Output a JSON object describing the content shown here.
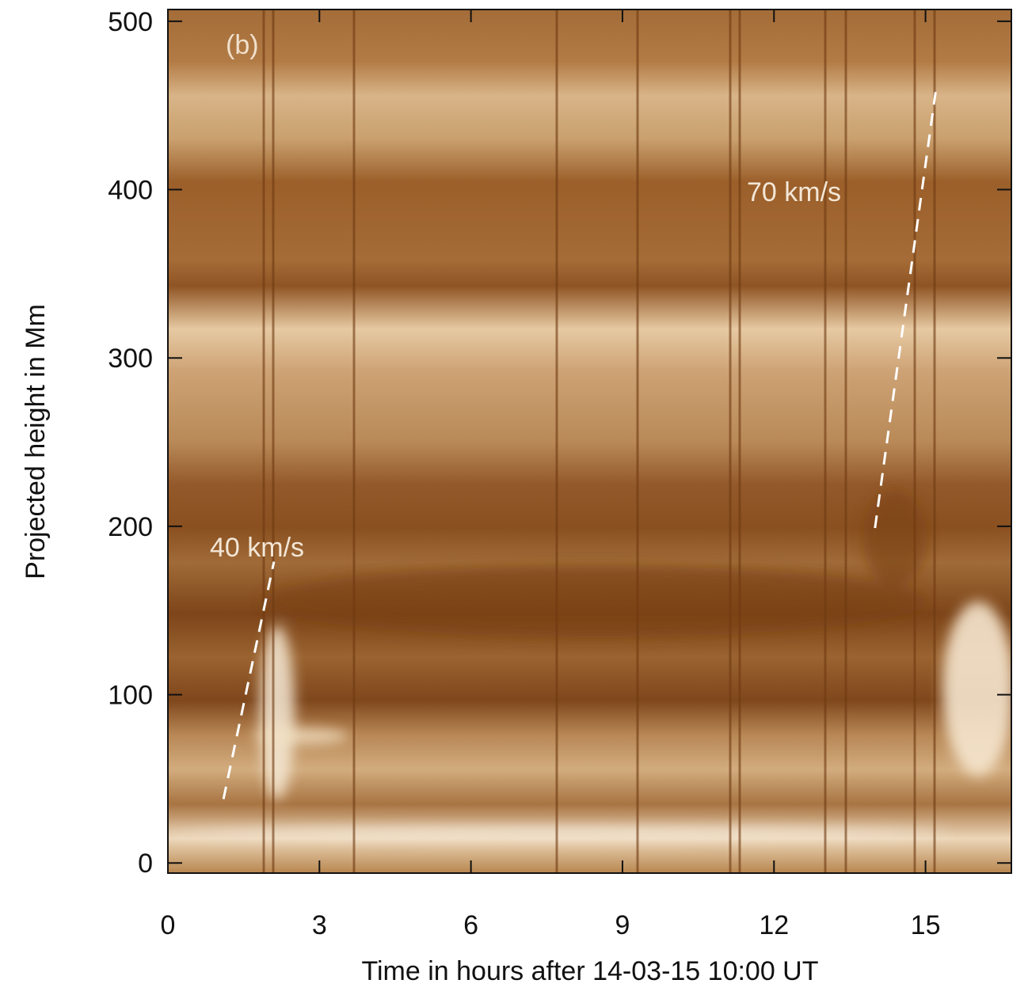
{
  "chart_data": {
    "type": "image",
    "panel_label": "(b)",
    "x_label": "Time in hours after 14-03-15 10:00 UT",
    "y_label": "Projected height in Mm",
    "xlim": [
      0,
      16.7
    ],
    "xticks": [
      0,
      3,
      6,
      9,
      12,
      15
    ],
    "ylim": [
      -6,
      507
    ],
    "yticks": [
      0,
      100,
      200,
      300,
      400,
      500
    ],
    "series": [
      {
        "name": "40 km/s",
        "color": "#ffffff",
        "x": [
          1.1,
          2.1
        ],
        "y": [
          38,
          179
        ]
      },
      {
        "name": "70 km/s",
        "color": "#ffffff",
        "x": [
          14.0,
          15.2
        ],
        "y": [
          199,
          458
        ]
      }
    ]
  }
}
